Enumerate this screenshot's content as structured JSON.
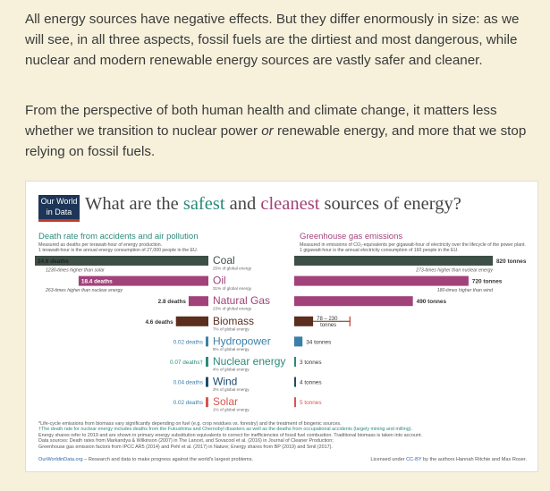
{
  "article": {
    "paragraph1": "All energy sources have negative effects. But they differ enormously in size: as we will see, in all three aspects, fossil fuels are the dirtiest and most dangerous, while nuclear and modern renewable energy sources are vastly safer and cleaner.",
    "paragraph2_before": "From the perspective of both human health and climate change, it matters less whether we transition to nuclear power ",
    "paragraph2_italic": "or",
    "paragraph2_after": " renewable energy, and more that we stop relying on fossil fuels."
  },
  "figure": {
    "logo_line1": "Our World",
    "logo_line2": "in Data",
    "title_pre": "What are the ",
    "title_safest": "safest",
    "title_mid": " and ",
    "title_cleanest": "cleanest",
    "title_post": " sources of energy?",
    "left_title": "Death rate from accidents and air pollution",
    "left_sub1": "Measured as deaths per terawatt-hour of energy production.",
    "left_sub2": "1 terawatt-hour is the annual energy consumption of 27,000 people in the EU.",
    "right_title": "Greenhouse gas emissions",
    "right_sub1": "Measured in emissions of CO₂-equivalents per gigawatt-hour of electricity over the lifecycle of the power plant.",
    "right_sub2": "1 gigawatt-hour is the annual electricity consumption of 160 people in the EU.",
    "footnote1": "*Life-cycle emissions from biomass vary significantly depending on fuel (e.g. crop residues vs. forestry) and the treatment of biogenic sources.",
    "footnote2": "†The death rate for nuclear energy includes deaths from the Fukushima and Chernobyl disasters as well as the deaths from occupational accidents (largely mining and milling).",
    "footnote3": "Energy shares refer to 2019 and are shown in primary energy substitution equivalents to correct for inefficiencies of fossil fuel combustion. Traditional biomass is taken into account.",
    "footnote4": "Data sources: Death rates from Markandya & Wilkinson (2007) in The Lancet, and Sovacool et al. (2016) in Journal of Cleaner Production;",
    "footnote5": "Greenhouse gas emission factors from IPCC AR5 (2014) and Pehl et al. (2017) in Nature; Energy shares from BP (2019) and Smil (2017).",
    "footer_link": "OurWorldinData.org",
    "footer_text": " – Research and data to make progress against the world's largest problems.",
    "license_pre": "Licensed under ",
    "license_link": "CC-BY",
    "license_post": " by the authors Hannah Ritchie and Max Roser."
  },
  "chart_data": {
    "type": "bar",
    "categories": [
      "Coal",
      "Oil",
      "Natural Gas",
      "Biomass",
      "Hydropower",
      "Nuclear energy",
      "Wind",
      "Solar"
    ],
    "shares": [
      "25% of global energy",
      "31% of global energy",
      "23% of global energy",
      "7% of global energy",
      "6% of global energy",
      "4% of global energy",
      "2% of global energy",
      "1% of global energy"
    ],
    "colors": [
      "#3d4f47",
      "#a2427a",
      "#a2427a",
      "#5b2e1e",
      "#3a7fa8",
      "#2b8a7a",
      "#1f4a6e",
      "#d9534f"
    ],
    "series": [
      {
        "name": "Death rate from accidents and air pollution",
        "values": [
          24.6,
          18.4,
          2.8,
          4.6,
          0.02,
          0.07,
          0.04,
          0.02
        ],
        "labels": [
          "24.6 deaths",
          "18.4 deaths",
          "2.8 deaths",
          "4.6 deaths",
          "0.02 deaths",
          "0.07 deaths†",
          "0.04 deaths",
          "0.02 deaths"
        ],
        "notes": [
          "1230-times higher than solar",
          "263-times higher than nuclear energy",
          "",
          "",
          "",
          "",
          "",
          ""
        ]
      },
      {
        "name": "Greenhouse gas emissions",
        "values": [
          820,
          720,
          490,
          230,
          34,
          3,
          4,
          5
        ],
        "range_biomass": [
          78,
          230
        ],
        "labels": [
          "820 tonnes",
          "720 tonnes",
          "490 tonnes",
          "78 – 230 tonnes",
          "34 tonnes",
          "3 tonnes",
          "4 tonnes",
          "5 tonnes"
        ],
        "notes": [
          "273-times higher than nuclear energy",
          "180-times higher than wind",
          "",
          "",
          "",
          "",
          "",
          ""
        ]
      }
    ],
    "xlim_deaths": [
      0,
      24.6
    ],
    "xlim_emissions": [
      0,
      820
    ]
  }
}
